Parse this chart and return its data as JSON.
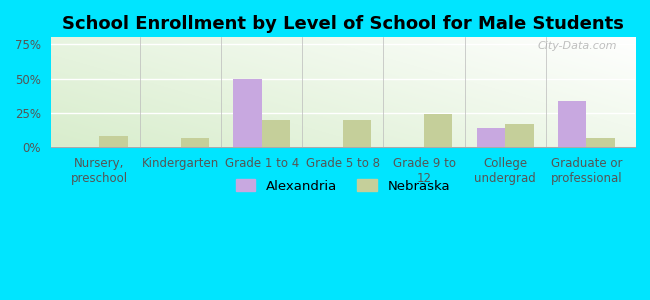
{
  "title": "School Enrollment by Level of School for Male Students",
  "categories": [
    "Nursery,\npreschool",
    "Kindergarten",
    "Grade 1 to 4",
    "Grade 5 to 8",
    "Grade 9 to\n12",
    "College\nundergrad",
    "Graduate or\nprofessional"
  ],
  "alexandria_values": [
    0,
    0,
    49.5,
    0,
    0,
    14,
    34
  ],
  "nebraska_values": [
    8,
    7,
    20,
    20,
    24,
    17,
    7
  ],
  "alexandria_color": "#c8a8e0",
  "nebraska_color": "#c5cf9a",
  "bar_width": 0.35,
  "ylim": [
    0,
    80
  ],
  "yticks": [
    0,
    25,
    50,
    75
  ],
  "ytick_labels": [
    "0%",
    "25%",
    "50%",
    "75%"
  ],
  "legend_labels": [
    "Alexandria",
    "Nebraska"
  ],
  "background_color": "#00e5ff",
  "title_fontsize": 13,
  "tick_fontsize": 8.5,
  "watermark": "City-Data.com"
}
